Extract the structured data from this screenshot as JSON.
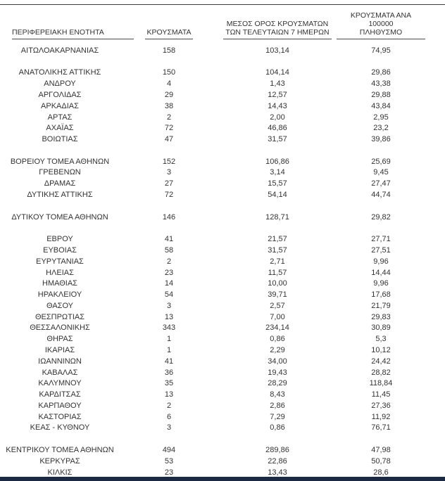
{
  "colors": {
    "text": "#333333",
    "rule": "#3a3a3a",
    "bottom_bar": "#1b2942"
  },
  "chart_data": {
    "type": "table",
    "columns": [
      "ΠΕΡΙΦΕΡΕΙΑΚΗ ΕΝΟΤΗΤΑ",
      "ΚΡΟΥΣΜΑΤΑ",
      "ΜΕΣΟΣ ΟΡΟΣ ΚΡΟΥΣΜΑΤΩΝ ΤΩΝ ΤΕΛΕΥΤΑΙΩΝ 7 ΗΜΕΡΩΝ",
      "ΚΡΟΥΣΜΑΤΑ ΑΝΑ 100000 ΠΛΗΘΥΣΜΟ"
    ],
    "headers": {
      "col1": "ΠΕΡΙΦΕΡΕΙΑΚΗ ΕΝΟΤΗΤΑ",
      "col2": "ΚΡΟΥΣΜΑΤΑ",
      "col3_line1": "ΜΕΣΟΣ ΟΡΟΣ ΚΡΟΥΣΜΑΤΩΝ",
      "col3_line2": "ΤΩΝ ΤΕΛΕΥΤΑΙΩΝ 7 ΗΜΕΡΩΝ",
      "col4_line1": "ΚΡΟΥΣΜΑΤΑ ΑΝΑ 100000",
      "col4_line2": "ΠΛΗΘΥΣΜΟ"
    },
    "rows": [
      {
        "region": "ΑΙΤΩΛΟΑΚΑΡΝΑΝΙΑΣ",
        "cases": "158",
        "avg7": "103,14",
        "per100k": "74,95"
      },
      {
        "spacer": true
      },
      {
        "region": "ΑΝΑΤΟΛΙΚΗΣ ΑΤΤΙΚΗΣ",
        "cases": "150",
        "avg7": "104,14",
        "per100k": "29,86"
      },
      {
        "region": "ΑΝΔΡΟΥ",
        "cases": "4",
        "avg7": "1,43",
        "per100k": "43,38"
      },
      {
        "region": "ΑΡΓΟΛΙΔΑΣ",
        "cases": "29",
        "avg7": "12,57",
        "per100k": "29,88"
      },
      {
        "region": "ΑΡΚΑΔΙΑΣ",
        "cases": "38",
        "avg7": "14,43",
        "per100k": "43,84"
      },
      {
        "region": "ΑΡΤΑΣ",
        "cases": "2",
        "avg7": "2,00",
        "per100k": "2,95"
      },
      {
        "region": "ΑΧΑΪΑΣ",
        "cases": "72",
        "avg7": "46,86",
        "per100k": "23,2"
      },
      {
        "region": "ΒΟΙΩΤΙΑΣ",
        "cases": "47",
        "avg7": "31,57",
        "per100k": "39,86"
      },
      {
        "spacer": true
      },
      {
        "region": "ΒΟΡΕΙΟΥ ΤΟΜΕΑ ΑΘΗΝΩΝ",
        "cases": "152",
        "avg7": "106,86",
        "per100k": "25,69"
      },
      {
        "region": "ΓΡΕΒΕΝΩΝ",
        "cases": "3",
        "avg7": "3,14",
        "per100k": "9,45"
      },
      {
        "region": "ΔΡΑΜΑΣ",
        "cases": "27",
        "avg7": "15,57",
        "per100k": "27,47"
      },
      {
        "region": "ΔΥΤΙΚΗΣ ΑΤΤΙΚΗΣ",
        "cases": "72",
        "avg7": "54,14",
        "per100k": "44,74"
      },
      {
        "spacer": true
      },
      {
        "region": "ΔΥΤΙΚΟΥ ΤΟΜΕΑ ΑΘΗΝΩΝ",
        "cases": "146",
        "avg7": "128,71",
        "per100k": "29,82"
      },
      {
        "spacer": true
      },
      {
        "region": "ΕΒΡΟΥ",
        "cases": "41",
        "avg7": "21,57",
        "per100k": "27,71"
      },
      {
        "region": "ΕΥΒΟΙΑΣ",
        "cases": "58",
        "avg7": "31,57",
        "per100k": "27,51"
      },
      {
        "region": "ΕΥΡΥΤΑΝΙΑΣ",
        "cases": "2",
        "avg7": "2,71",
        "per100k": "9,96"
      },
      {
        "region": "ΗΛΕΙΑΣ",
        "cases": "23",
        "avg7": "11,57",
        "per100k": "14,44"
      },
      {
        "region": "ΗΜΑΘΙΑΣ",
        "cases": "14",
        "avg7": "10,00",
        "per100k": "9,96"
      },
      {
        "region": "ΗΡΑΚΛΕΙΟΥ",
        "cases": "54",
        "avg7": "39,71",
        "per100k": "17,68"
      },
      {
        "region": "ΘΑΣΟΥ",
        "cases": "3",
        "avg7": "2,57",
        "per100k": "21,79"
      },
      {
        "region": "ΘΕΣΠΡΩΤΙΑΣ",
        "cases": "13",
        "avg7": "7,00",
        "per100k": "29,83"
      },
      {
        "region": "ΘΕΣΣΑΛΟΝΙΚΗΣ",
        "cases": "343",
        "avg7": "234,14",
        "per100k": "30,89"
      },
      {
        "region": "ΘΗΡΑΣ",
        "cases": "1",
        "avg7": "0,86",
        "per100k": "5,3"
      },
      {
        "region": "ΙΚΑΡΙΑΣ",
        "cases": "1",
        "avg7": "2,29",
        "per100k": "10,12"
      },
      {
        "region": "ΙΩΑΝΝΙΝΩΝ",
        "cases": "41",
        "avg7": "34,00",
        "per100k": "24,42"
      },
      {
        "region": "ΚΑΒΑΛΑΣ",
        "cases": "36",
        "avg7": "19,43",
        "per100k": "28,82"
      },
      {
        "region": "ΚΑΛΥΜΝΟΥ",
        "cases": "35",
        "avg7": "28,29",
        "per100k": "118,84"
      },
      {
        "region": "ΚΑΡΔΙΤΣΑΣ",
        "cases": "13",
        "avg7": "8,43",
        "per100k": "11,45"
      },
      {
        "region": "ΚΑΡΠΑΘΟΥ",
        "cases": "2",
        "avg7": "2,86",
        "per100k": "27,36"
      },
      {
        "region": "ΚΑΣΤΟΡΙΑΣ",
        "cases": "6",
        "avg7": "7,29",
        "per100k": "11,92"
      },
      {
        "region": "ΚΕΑΣ - ΚΥΘΝΟΥ",
        "cases": "3",
        "avg7": "0,86",
        "per100k": "76,71"
      },
      {
        "spacer": true
      },
      {
        "region": "ΚΕΝΤΡΙΚΟΥ ΤΟΜΕΑ ΑΘΗΝΩΝ",
        "cases": "494",
        "avg7": "289,86",
        "per100k": "47,98"
      },
      {
        "region": "ΚΕΡΚΥΡΑΣ",
        "cases": "53",
        "avg7": "22,86",
        "per100k": "50,78"
      },
      {
        "region": "ΚΙΛΚΙΣ",
        "cases": "23",
        "avg7": "13,43",
        "per100k": "28,6"
      }
    ]
  }
}
